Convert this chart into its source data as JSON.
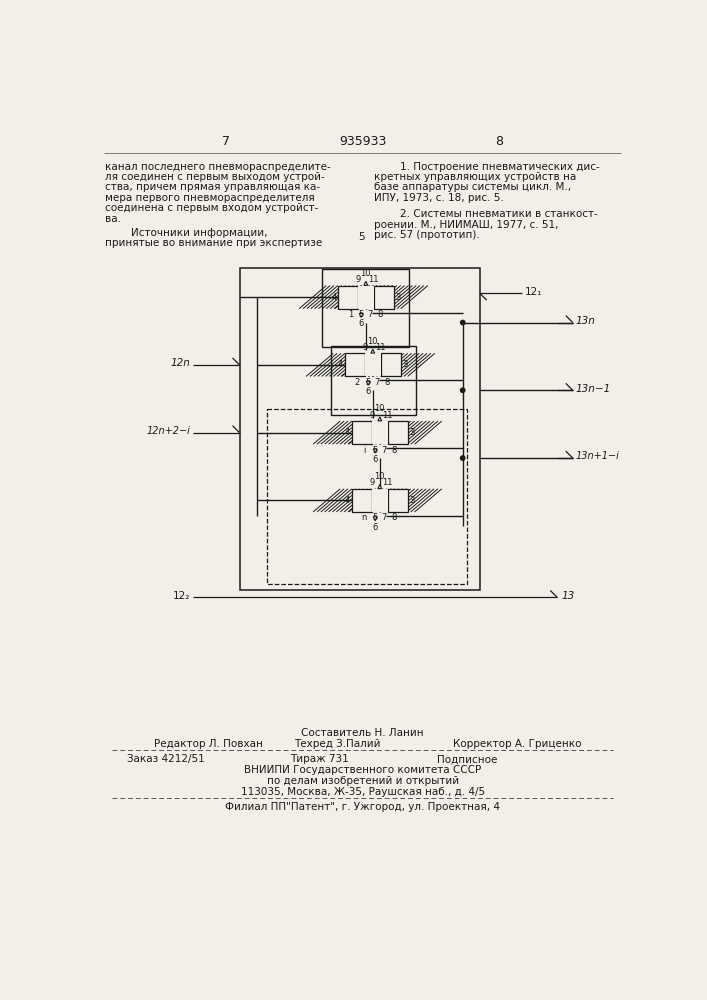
{
  "page_number_left": "7",
  "page_number_center": "935933",
  "page_number_right": "8",
  "top_left_text": [
    "канал последнего пневмораспределите-",
    "ля соединен с первым выходом устрой-",
    "ства, причем прямая управляющая ка-",
    "мера первого пневмораспределителя",
    "соединена с первым входом устройст-",
    "ва."
  ],
  "top_left_text2": [
    "        Источники информации,",
    "принятые во внимание при экспертизе"
  ],
  "top_right_ref1": [
    "        1. Построение пневматических дис-",
    "кретных управляющих устройств на",
    "базе аппаратуры системы цикл. М.,",
    "ИПУ, 1973, с. 18, рис. 5."
  ],
  "top_right_ref2": [
    "        2. Системы пневматики в станкост-",
    "роении. М., НИИМАШ, 1977, с. 51,",
    "рис. 57 (прототип)."
  ],
  "center_number": "5",
  "bottom_sestavitel": "Составитель Н. Ланин",
  "bottom_editor": "Редактор Л. Повхан",
  "bottom_tehred": "Техред З.Палий",
  "bottom_korrektor": "Корректор А. Гриценко",
  "bottom_zakaz": "Заказ 4212/51",
  "bottom_tirazh": "Тираж 731",
  "bottom_podpisnoe": "Подписное",
  "bottom_vniip1": "ВНИИПИ Государственного комитета СССР",
  "bottom_vniip2": "по делам изобретений и открытий",
  "bottom_vniip3": "113035, Москва, Ж-35, Раушская наб., д. 4/5",
  "bottom_filial": "Филиал ПП\"Патент\", г. Ужгород, ул. Проектная, 4",
  "bg_color": "#f2efe9",
  "line_color": "#1a1a1a",
  "text_color": "#1a1a1a"
}
